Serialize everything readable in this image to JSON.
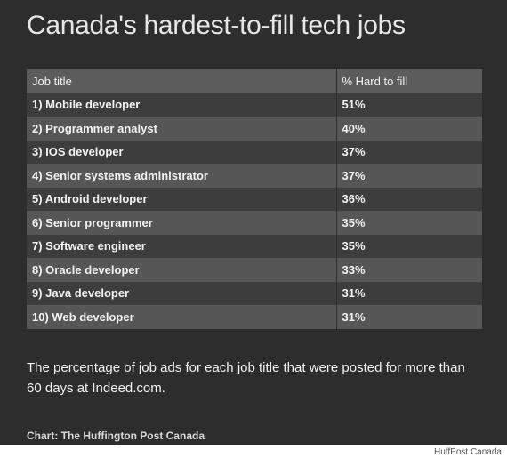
{
  "title": "Canada's hardest-to-fill tech jobs",
  "table": {
    "headers": [
      "Job title",
      "% Hard to fill"
    ],
    "rows": [
      {
        "job": "1) Mobile developer",
        "pct": "51%"
      },
      {
        "job": "2) Programmer analyst",
        "pct": "40%"
      },
      {
        "job": "3) IOS developer",
        "pct": "37%"
      },
      {
        "job": "4) Senior systems administrator",
        "pct": "37%"
      },
      {
        "job": "5) Android developer",
        "pct": "36%"
      },
      {
        "job": "6) Senior programmer",
        "pct": "35%"
      },
      {
        "job": "7) Software engineer",
        "pct": "35%"
      },
      {
        "job": "8) Oracle developer",
        "pct": "33%"
      },
      {
        "job": "9) Java developer",
        "pct": "31%"
      },
      {
        "job": "10) Web developer",
        "pct": "31%"
      }
    ]
  },
  "description": "The percentage of job ads for each job title that were posted for more than 60 days at Indeed.com.",
  "credit": "Chart: The Huffington Post Canada",
  "watermark": "HuffPost Canada",
  "colors": {
    "background": "#2d2d2d",
    "header_row": "#5c5c5c",
    "row_odd": "#3d3d3d",
    "row_even": "#565656",
    "text": "#f2f2f2"
  },
  "chart_data": {
    "type": "table",
    "title": "Canada's hardest-to-fill tech jobs",
    "columns": [
      "Job title",
      "% Hard to fill"
    ],
    "categories": [
      "1) Mobile developer",
      "2) Programmer analyst",
      "3) IOS developer",
      "4) Senior systems administrator",
      "5) Android developer",
      "6) Senior programmer",
      "7) Software engineer",
      "8) Oracle developer",
      "9) Java developer",
      "10) Web developer"
    ],
    "values": [
      51,
      40,
      37,
      37,
      36,
      35,
      35,
      33,
      31,
      31
    ]
  }
}
